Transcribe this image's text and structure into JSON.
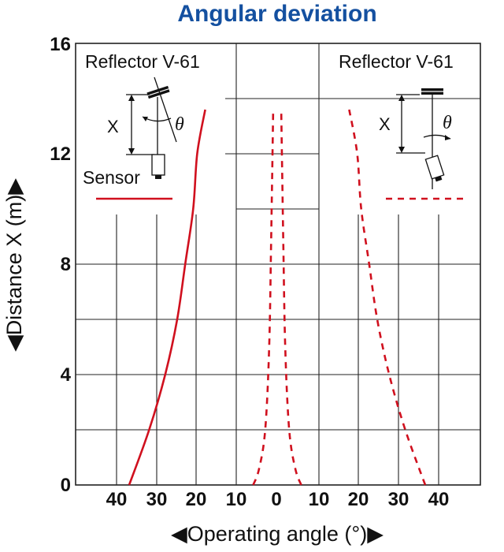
{
  "chart_data": {
    "type": "line",
    "title": "Angular deviation",
    "xlabel": "◀Operating angle (°)▶",
    "ylabel": "◀Distance X (m)▶",
    "ylim": [
      0,
      16
    ],
    "y_ticks": [
      "0",
      "4",
      "8",
      "12",
      "16"
    ],
    "x_tick_labels": [
      "40",
      "30",
      "20",
      "10",
      "0",
      "10",
      "20",
      "30",
      "40"
    ],
    "grid": true,
    "series": [
      {
        "name": "Reflector V-61",
        "side": "left",
        "style": "solid",
        "color": "#d0101e",
        "points": [
          [
            37,
            0
          ],
          [
            32,
            2
          ],
          [
            28,
            4
          ],
          [
            25,
            6
          ],
          [
            23,
            8
          ],
          [
            21,
            10
          ],
          [
            20,
            12
          ],
          [
            18,
            13.6
          ]
        ]
      },
      {
        "name": "Reflector V-61",
        "side": "right",
        "style": "dashed",
        "color": "#d0101e",
        "points": [
          [
            37,
            0
          ],
          [
            32,
            2
          ],
          [
            28,
            4
          ],
          [
            25,
            6
          ],
          [
            23,
            8
          ],
          [
            21,
            10
          ],
          [
            20,
            12
          ],
          [
            18,
            13.6
          ]
        ]
      },
      {
        "name": "",
        "side": "center-left",
        "style": "dashed",
        "color": "#d0101e",
        "points": [
          [
            6,
            0
          ],
          [
            4.5,
            0.6
          ],
          [
            3,
            2
          ],
          [
            2,
            5
          ],
          [
            1.5,
            9
          ],
          [
            1,
            13.6
          ]
        ]
      },
      {
        "name": "",
        "side": "center-right",
        "style": "dashed",
        "color": "#d0101e",
        "points": [
          [
            6,
            0
          ],
          [
            4.5,
            0.6
          ],
          [
            3,
            2
          ],
          [
            2,
            5
          ],
          [
            1.5,
            9
          ],
          [
            1,
            13.6
          ]
        ]
      }
    ],
    "legend": {
      "left": {
        "label": "Reflector V-61",
        "sensor_label": "Sensor",
        "distance_symbol": "X",
        "angle_symbol": "θ",
        "line_style": "solid"
      },
      "right": {
        "label": "Reflector V-61",
        "distance_symbol": "X",
        "angle_symbol": "θ",
        "line_style": "dashed"
      }
    }
  }
}
